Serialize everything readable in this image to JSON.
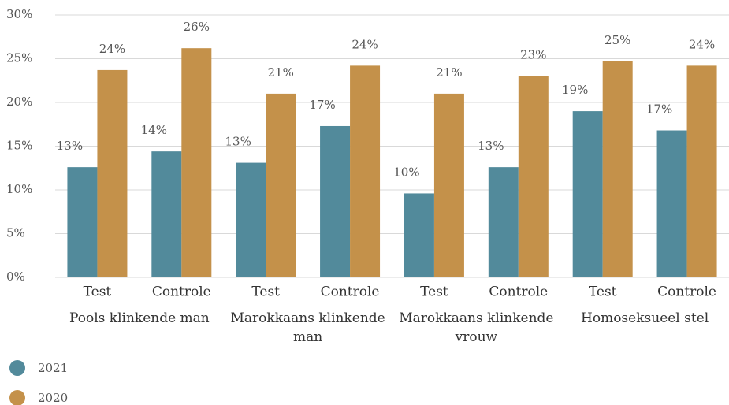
{
  "chart_data": {
    "type": "bar",
    "categories": [
      "Test",
      "Controle",
      "Test",
      "Controle",
      "Test",
      "Controle",
      "Test",
      "Controle"
    ],
    "groups": [
      "Pools klinkende man",
      "Marokkaans klinkende man",
      "Marokkaans klinkende vrouw",
      "Homoseksueel stel"
    ],
    "series": [
      {
        "name": "2021",
        "color": "#528a9b",
        "values": [
          12.6,
          14.4,
          13.1,
          17.3,
          9.6,
          12.6,
          19.0,
          16.8
        ],
        "value_labels": [
          "13%",
          "14%",
          "13%",
          "17%",
          "10%",
          "13%",
          "19%",
          "17%"
        ]
      },
      {
        "name": "2020",
        "color": "#c4914a",
        "values": [
          23.7,
          26.2,
          21.0,
          24.2,
          21.0,
          23.0,
          24.7,
          24.2
        ],
        "value_labels": [
          "24%",
          "26%",
          "21%",
          "24%",
          "21%",
          "23%",
          "25%",
          "24%"
        ]
      }
    ],
    "ylim": [
      0,
      30
    ],
    "yticks": [
      {
        "value": 0,
        "label": "0%"
      },
      {
        "value": 5,
        "label": "5%"
      },
      {
        "value": 10,
        "label": "10%"
      },
      {
        "value": 15,
        "label": "15%"
      },
      {
        "value": 20,
        "label": "20%"
      },
      {
        "value": 25,
        "label": "25%"
      },
      {
        "value": 30,
        "label": "30%"
      }
    ],
    "grid": true
  }
}
